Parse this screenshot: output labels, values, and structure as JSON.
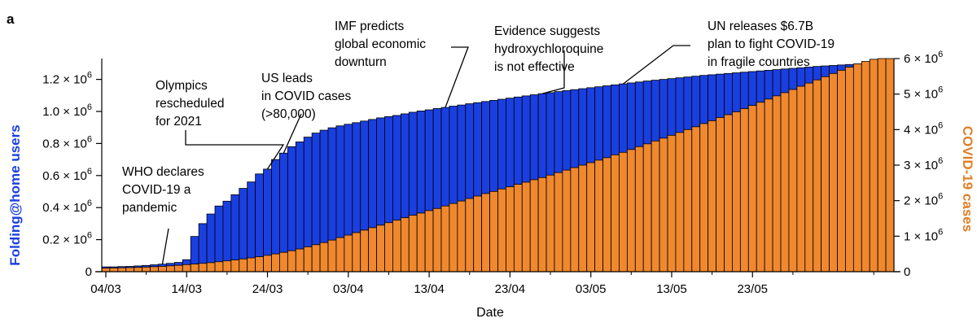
{
  "panel_label": "a",
  "colors": {
    "users": "#1a3fe0",
    "cases": "#f0882e",
    "left_axis_title": "#1a3fe0",
    "right_axis_title": "#e07f27",
    "bar_edge": "#000000"
  },
  "chart_data": {
    "type": "bar",
    "title": "",
    "xlabel": "Date",
    "ylabel_left": "Folding@home users",
    "ylabel_right": "COVID-19 cases",
    "start_date": "04/03",
    "x_ticks": [
      "04/03",
      "14/03",
      "24/03",
      "03/04",
      "13/04",
      "23/04",
      "03/05",
      "13/05",
      "23/05"
    ],
    "y_left_ticks": [
      "0",
      "0.2 × 10⁶",
      "0.4 × 10⁶",
      "0.6 × 10⁶",
      "0.8 × 10⁶",
      "1.0 × 10⁶",
      "1.2 × 10⁶"
    ],
    "y_left_tick_values": [
      0,
      200000,
      400000,
      600000,
      800000,
      1000000,
      1200000
    ],
    "y_right_ticks": [
      "0",
      "1 × 10⁶",
      "2 × 10⁶",
      "3 × 10⁶",
      "4 × 10⁶",
      "5 × 10⁶",
      "6 × 10⁶"
    ],
    "y_right_tick_values": [
      0,
      1000000,
      2000000,
      3000000,
      4000000,
      5000000,
      6000000
    ],
    "ylim_left": [
      0,
      1330000
    ],
    "ylim_right": [
      0,
      6000000
    ],
    "series": [
      {
        "name": "Folding@home users",
        "axis": "left",
        "values": [
          30000,
          30000,
          32000,
          33000,
          36000,
          39000,
          43000,
          47000,
          52000,
          58000,
          75000,
          220000,
          300000,
          360000,
          410000,
          440000,
          480000,
          520000,
          560000,
          610000,
          640000,
          700000,
          740000,
          780000,
          810000,
          840000,
          865000,
          883000,
          898000,
          910000,
          920000,
          930000,
          940000,
          950000,
          960000,
          968000,
          975000,
          985000,
          995000,
          1003000,
          1010000,
          1018000,
          1025000,
          1033000,
          1040000,
          1048000,
          1055000,
          1062000,
          1069000,
          1076000,
          1083000,
          1090000,
          1097000,
          1104000,
          1111000,
          1117000,
          1124000,
          1130000,
          1136000,
          1142000,
          1148000,
          1154000,
          1160000,
          1166000,
          1172000,
          1178000,
          1184000,
          1190000,
          1195000,
          1200000,
          1205000,
          1210000,
          1215000,
          1220000,
          1225000,
          1229000,
          1233000,
          1237000,
          1241000,
          1245000,
          1249000,
          1253000,
          1257000,
          1261000,
          1265000,
          1269000,
          1273000,
          1277000,
          1281000,
          1284000,
          1287000,
          1290000,
          1293000,
          1296000,
          1299000,
          1302000,
          1305000,
          1307000
        ]
      },
      {
        "name": "COVID-19 cases",
        "axis": "right",
        "values": [
          100000,
          105000,
          110000,
          115000,
          120000,
          130000,
          140000,
          150000,
          165000,
          180000,
          200000,
          215000,
          235000,
          255000,
          280000,
          305000,
          330000,
          360000,
          390000,
          420000,
          460000,
          500000,
          545000,
          590000,
          640000,
          700000,
          760000,
          820000,
          890000,
          960000,
          1030000,
          1100000,
          1170000,
          1240000,
          1310000,
          1380000,
          1450000,
          1520000,
          1590000,
          1650000,
          1720000,
          1780000,
          1850000,
          1920000,
          1990000,
          2060000,
          2130000,
          2200000,
          2260000,
          2330000,
          2390000,
          2460000,
          2520000,
          2590000,
          2650000,
          2720000,
          2790000,
          2860000,
          2930000,
          3000000,
          3070000,
          3140000,
          3210000,
          3290000,
          3360000,
          3440000,
          3520000,
          3600000,
          3680000,
          3760000,
          3840000,
          3920000,
          4000000,
          4080000,
          4170000,
          4250000,
          4340000,
          4420000,
          4500000,
          4590000,
          4680000,
          4770000,
          4860000,
          4950000,
          5040000,
          5130000,
          5220000,
          5310000,
          5400000,
          5490000,
          5580000,
          5670000,
          5760000,
          5850000,
          5920000,
          5980000,
          6000000,
          6000000
        ]
      }
    ],
    "annotations": [
      {
        "lines": [
          "WHO declares",
          "COVID-19 a",
          "pandemic"
        ],
        "day": 7
      },
      {
        "lines": [
          "Olympics",
          "rescheduled",
          "for 2021"
        ],
        "day": 20
      },
      {
        "lines": [
          "US leads",
          "in COVID cases",
          "(>80,000)"
        ],
        "day": 22
      },
      {
        "lines": [
          "IMF predicts",
          "global economic",
          "downturn"
        ],
        "day": 42
      },
      {
        "lines": [
          "Evidence suggests",
          "hydroxychloroquine",
          "is not effective"
        ],
        "day": 54
      },
      {
        "lines": [
          "UN releases $6.7B",
          "plan to fight COVID-19",
          "in fragile countries"
        ],
        "day": 64
      }
    ]
  }
}
